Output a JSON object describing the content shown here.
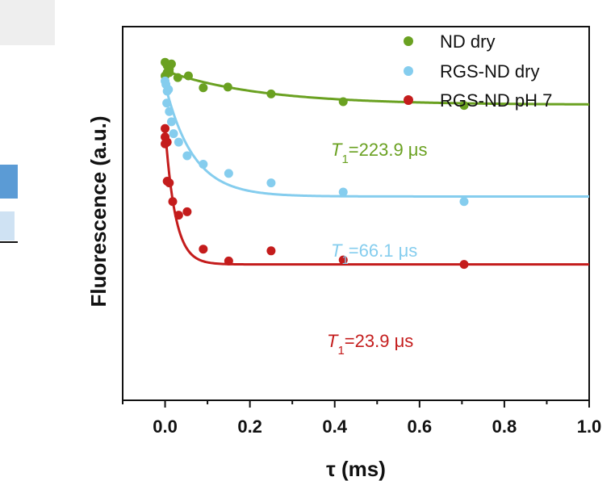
{
  "chart_data": {
    "type": "scatter",
    "title": "",
    "xlabel": "τ (ms)",
    "ylabel": "Fluorescence (a.u.)",
    "xlim": [
      -0.1,
      1.0
    ],
    "ylim": [
      0.0,
      1.1
    ],
    "x_ticks": [
      "0.0",
      "0.2",
      "0.4",
      "0.6",
      "0.8",
      "1.0"
    ],
    "y_ticks_shown": false,
    "grid": false,
    "legend": "top-right",
    "series": [
      {
        "name": "ND dry",
        "color": "#6aa121",
        "points": [
          [
            0.0,
            0.995
          ],
          [
            0.005,
            0.985
          ],
          [
            0.01,
            0.975
          ],
          [
            0.015,
            0.99
          ],
          [
            0.0,
            0.955
          ],
          [
            0.005,
            0.965
          ],
          [
            0.01,
            0.965
          ],
          [
            0.03,
            0.95
          ],
          [
            0.055,
            0.955
          ],
          [
            0.09,
            0.92
          ],
          [
            0.148,
            0.922
          ],
          [
            0.25,
            0.902
          ],
          [
            0.42,
            0.879
          ],
          [
            0.705,
            0.868
          ]
        ],
        "fit": {
          "A": 0.87,
          "B": 0.1,
          "tau": 0.2239
        },
        "T1_label": "=223.9 μs"
      },
      {
        "name": "RGS-ND dry",
        "color": "#85cdee",
        "points": [
          [
            0.0,
            0.94
          ],
          [
            0.002,
            0.93
          ],
          [
            0.005,
            0.91
          ],
          [
            0.008,
            0.915
          ],
          [
            0.004,
            0.875
          ],
          [
            0.01,
            0.85
          ],
          [
            0.015,
            0.82
          ],
          [
            0.02,
            0.785
          ],
          [
            0.032,
            0.76
          ],
          [
            0.052,
            0.72
          ],
          [
            0.09,
            0.695
          ],
          [
            0.15,
            0.668
          ],
          [
            0.25,
            0.64
          ],
          [
            0.42,
            0.613
          ],
          [
            0.705,
            0.585
          ]
        ],
        "fit": {
          "A": 0.6,
          "B": 0.33,
          "tau": 0.0661
        },
        "T1_label": "=66.1 μs"
      },
      {
        "name": "RGS-ND pH 7",
        "color": "#c41c1c",
        "points": [
          [
            0.0,
            0.8
          ],
          [
            0.0,
            0.775
          ],
          [
            0.005,
            0.76
          ],
          [
            0.0,
            0.755
          ],
          [
            0.005,
            0.645
          ],
          [
            0.01,
            0.64
          ],
          [
            0.018,
            0.585
          ],
          [
            0.032,
            0.545
          ],
          [
            0.052,
            0.555
          ],
          [
            0.09,
            0.445
          ],
          [
            0.15,
            0.41
          ],
          [
            0.25,
            0.44
          ],
          [
            0.42,
            0.413
          ],
          [
            0.705,
            0.4
          ]
        ],
        "fit": {
          "A": 0.4,
          "B": 0.4,
          "tau": 0.0239
        },
        "T1_label": "=23.9 μs"
      }
    ],
    "T1_symbol": "T",
    "T1_subscript": "1"
  }
}
